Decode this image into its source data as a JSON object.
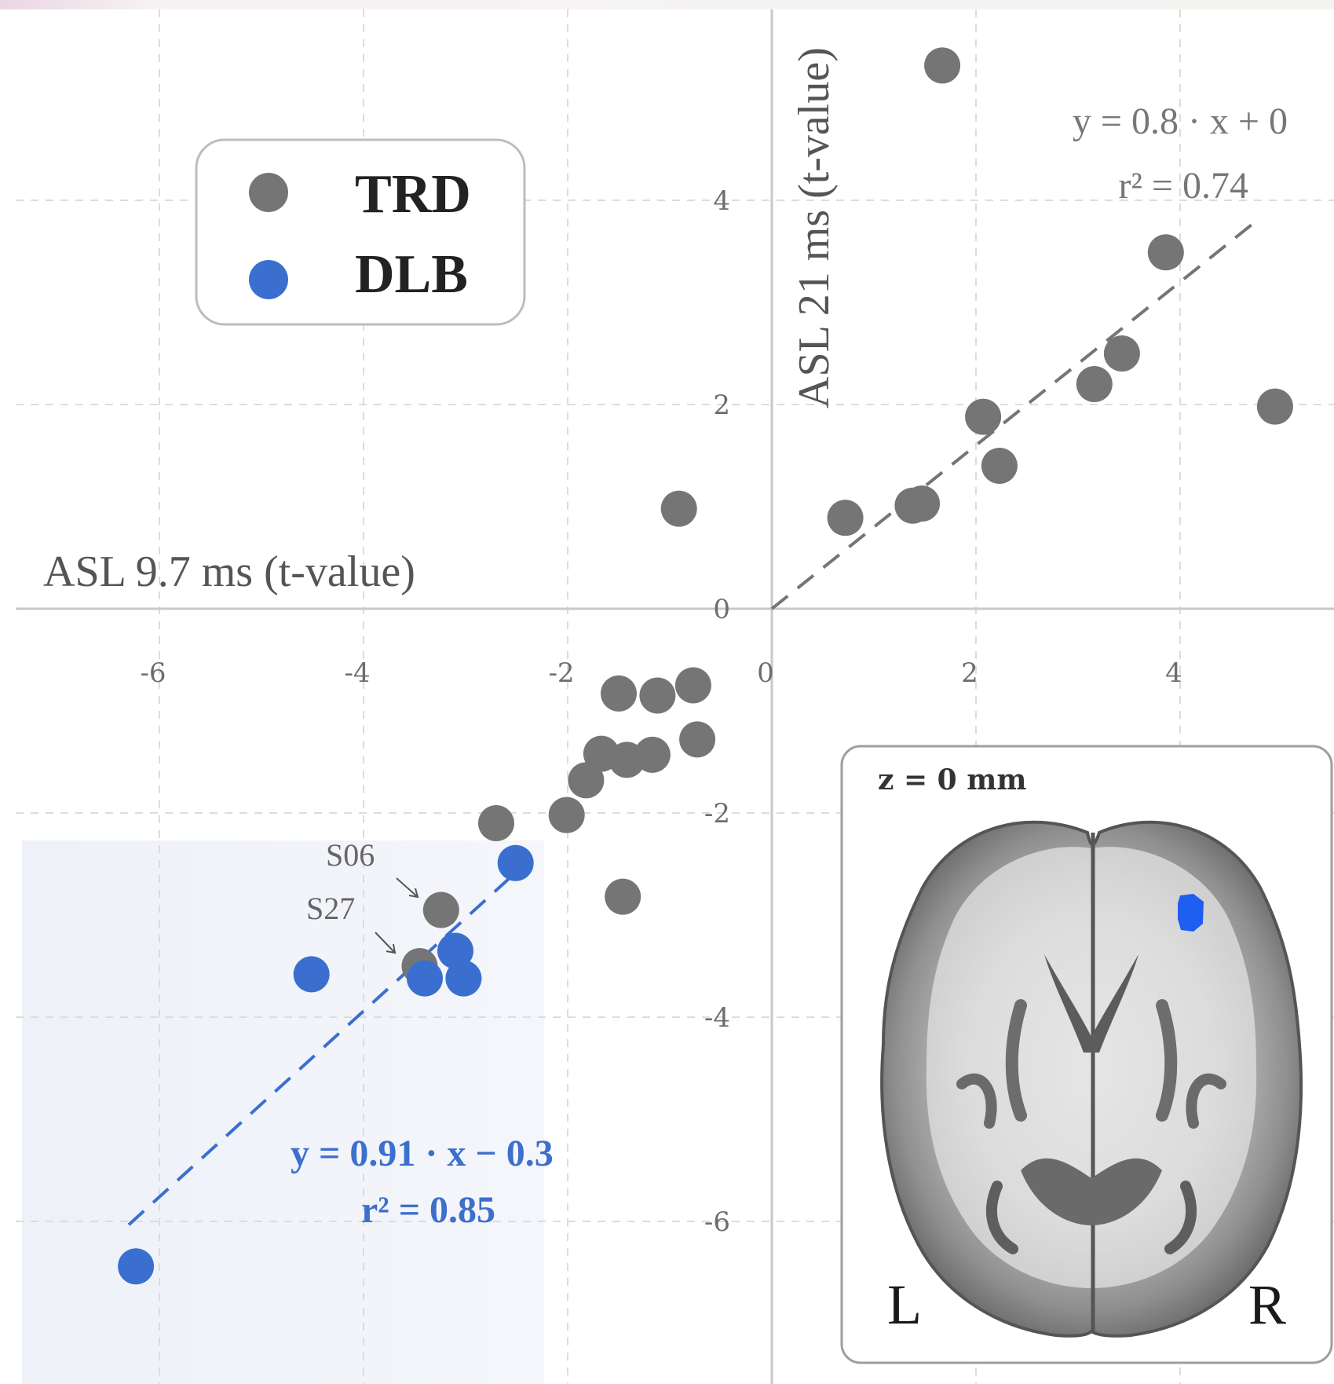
{
  "chart_data": {
    "type": "scatter",
    "xlabel": "ASL 9.7 ms (t-value)",
    "ylabel": "ASL 21 ms (t-value)",
    "xlim": [
      -7.5,
      5.5
    ],
    "ylim": [
      -7.5,
      5.4
    ],
    "x_ticks": [
      -6,
      -4,
      -2,
      0,
      2,
      4
    ],
    "y_ticks": [
      -6,
      -4,
      -2,
      0,
      2,
      4
    ],
    "x_tick_labels": [
      "-6",
      "-4",
      "-2",
      "0",
      "2",
      "4"
    ],
    "y_tick_labels": [
      "-6",
      "-4",
      "-2",
      "0",
      "2",
      "4"
    ],
    "grid": true,
    "legend_position": "top-left",
    "series": [
      {
        "name": "TRD",
        "color": "#757575",
        "points": [
          [
            1.67,
            5.32
          ],
          [
            3.86,
            3.49
          ],
          [
            3.43,
            2.5
          ],
          [
            3.16,
            2.2
          ],
          [
            4.93,
            1.98
          ],
          [
            2.07,
            1.88
          ],
          [
            2.23,
            1.4
          ],
          [
            1.38,
            1.01
          ],
          [
            1.47,
            1.03
          ],
          [
            0.72,
            0.89
          ],
          [
            -0.91,
            0.98
          ],
          [
            -1.5,
            -0.83
          ],
          [
            -1.12,
            -0.85
          ],
          [
            -0.77,
            -0.75
          ],
          [
            -0.73,
            -1.28
          ],
          [
            -1.67,
            -1.42
          ],
          [
            -1.42,
            -1.48
          ],
          [
            -1.17,
            -1.43
          ],
          [
            -1.82,
            -1.68
          ],
          [
            -2.01,
            -2.02
          ],
          [
            -2.7,
            -2.1
          ],
          [
            -1.46,
            -2.82
          ],
          [
            -3.24,
            -2.95
          ],
          [
            -3.45,
            -3.5
          ]
        ]
      },
      {
        "name": "DLB",
        "color": "#3b6fcf",
        "points": [
          [
            -2.51,
            -2.49
          ],
          [
            -3.1,
            -3.35
          ],
          [
            -4.51,
            -3.58
          ],
          [
            -3.4,
            -3.62
          ],
          [
            -3.02,
            -3.62
          ],
          [
            -6.23,
            -6.44
          ]
        ]
      }
    ],
    "fit_lines": [
      {
        "series": "TRD",
        "slope": 0.8,
        "intercept": 0,
        "x_range": [
          0,
          4.7
        ]
      },
      {
        "series": "DLB",
        "slope": 0.91,
        "intercept": -0.3,
        "x_range": [
          -6.3,
          -2.5
        ]
      }
    ],
    "annotations": {
      "trd_equation": "y = 0.8 · x + 0",
      "trd_r2": "r² = 0.74",
      "dlb_equation": "y = 0.91 · x − 0.3",
      "dlb_r2": "r² = 0.85",
      "label_s06": "S06",
      "label_s27": "S27"
    }
  },
  "legend": {
    "items": [
      "TRD",
      "DLB"
    ]
  },
  "inset": {
    "title": "z = 0 mm",
    "left_label": "L",
    "right_label": "R",
    "highlight_color": "#1e5ef0"
  }
}
